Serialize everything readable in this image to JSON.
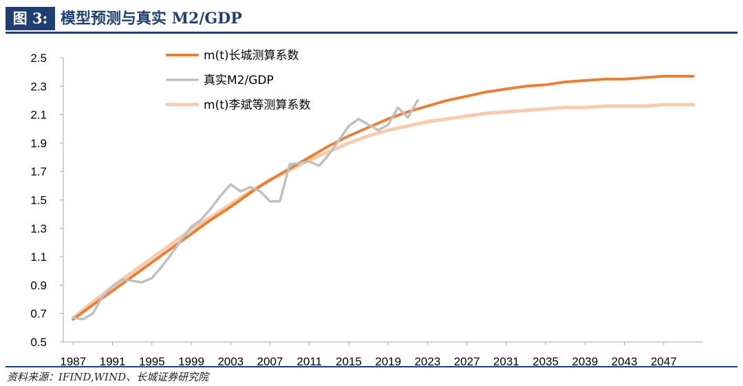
{
  "header": {
    "figure_label": "图 3:",
    "title": "模型预测与真实 M2/GDP"
  },
  "source": "资料来源：IFIND,WIND、长城证券研究院",
  "colors": {
    "header_bg": "#1f3f73",
    "changcheng": "#ed7d31",
    "real": "#bfbfbf",
    "libin": "#f8cbad"
  },
  "chart_data": {
    "type": "line",
    "xlim": [
      1986,
      2051
    ],
    "ylim": [
      0.5,
      2.5
    ],
    "x_ticks": [
      1987,
      1991,
      1995,
      1999,
      2003,
      2007,
      2011,
      2015,
      2019,
      2023,
      2027,
      2031,
      2035,
      2039,
      2043,
      2047
    ],
    "y_ticks": [
      0.5,
      0.7,
      0.9,
      1.1,
      1.3,
      1.5,
      1.7,
      1.9,
      2.1,
      2.3,
      2.5
    ],
    "grid": false,
    "legend_position": "top-left",
    "series": [
      {
        "name": "m(t)长城测算系数",
        "color": "#ed7d31",
        "x": [
          1987,
          1989,
          1991,
          1993,
          1995,
          1997,
          1999,
          2001,
          2003,
          2005,
          2007,
          2009,
          2011,
          2013,
          2015,
          2017,
          2019,
          2021,
          2023,
          2025,
          2027,
          2029,
          2031,
          2033,
          2035,
          2037,
          2039,
          2041,
          2043,
          2045,
          2047,
          2050
        ],
        "values": [
          0.66,
          0.76,
          0.86,
          0.96,
          1.06,
          1.16,
          1.26,
          1.36,
          1.45,
          1.55,
          1.64,
          1.72,
          1.8,
          1.88,
          1.95,
          2.01,
          2.07,
          2.12,
          2.16,
          2.2,
          2.23,
          2.26,
          2.28,
          2.3,
          2.31,
          2.33,
          2.34,
          2.35,
          2.35,
          2.36,
          2.37,
          2.37
        ]
      },
      {
        "name": "真实M2/GDP",
        "color": "#bfbfbf",
        "x": [
          1987,
          1988,
          1989,
          1990,
          1991,
          1992,
          1993,
          1994,
          1995,
          1996,
          1997,
          1998,
          1999,
          2000,
          2001,
          2002,
          2003,
          2004,
          2005,
          2006,
          2007,
          2008,
          2009,
          2010,
          2011,
          2012,
          2013,
          2014,
          2015,
          2016,
          2017,
          2018,
          2019,
          2020,
          2021,
          2022
        ],
        "values": [
          0.67,
          0.66,
          0.7,
          0.82,
          0.89,
          0.94,
          0.93,
          0.92,
          0.95,
          1.03,
          1.12,
          1.22,
          1.31,
          1.36,
          1.44,
          1.53,
          1.61,
          1.56,
          1.59,
          1.56,
          1.49,
          1.49,
          1.75,
          1.76,
          1.77,
          1.74,
          1.82,
          1.92,
          2.02,
          2.07,
          2.03,
          1.99,
          2.03,
          2.15,
          2.08,
          2.2
        ]
      },
      {
        "name": "m(t)李斌等测算系数",
        "color": "#f8cbad",
        "x": [
          1987,
          1989,
          1991,
          1993,
          1995,
          1997,
          1999,
          2001,
          2003,
          2005,
          2007,
          2009,
          2011,
          2013,
          2015,
          2017,
          2019,
          2021,
          2023,
          2025,
          2027,
          2029,
          2031,
          2033,
          2035,
          2037,
          2039,
          2041,
          2043,
          2045,
          2047,
          2050
        ],
        "values": [
          0.67,
          0.78,
          0.89,
          0.99,
          1.09,
          1.19,
          1.29,
          1.38,
          1.47,
          1.56,
          1.64,
          1.71,
          1.78,
          1.84,
          1.9,
          1.95,
          1.99,
          2.02,
          2.05,
          2.07,
          2.09,
          2.11,
          2.12,
          2.13,
          2.14,
          2.15,
          2.15,
          2.16,
          2.16,
          2.16,
          2.17,
          2.17
        ]
      }
    ]
  }
}
